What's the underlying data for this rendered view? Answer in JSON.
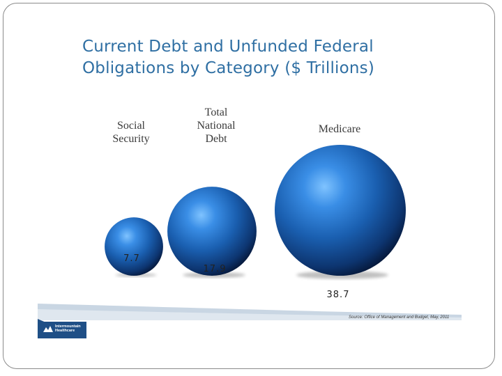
{
  "slide": {
    "title_lines": [
      "Current Debt and Unfunded Federal",
      "Obligations by Category ($ Trillions)"
    ]
  },
  "chart_data": {
    "type": "bubble",
    "title": "Current Debt and Unfunded Federal Obligations by Category ($ Trillions)",
    "categories": [
      "Social Security",
      "Total National Debt",
      "Medicare"
    ],
    "category_label_lines": [
      [
        "Social",
        "Security"
      ],
      [
        "Total",
        "National",
        "Debt"
      ],
      [
        "Medicare"
      ]
    ],
    "values": [
      7.7,
      17.9,
      38.7
    ],
    "value_labels": [
      "7.7",
      "17.9",
      "38.7"
    ],
    "unit": "$ Trillions",
    "colors": {
      "bubble": "#1a5fb0",
      "highlight": "#7fc3ff",
      "shadow": "#06183a"
    }
  },
  "footer": {
    "source": "Source: Office of Management and Budget, May, 2011",
    "logo_lines": [
      "Intermountain",
      "Healthcare"
    ],
    "colors": {
      "band_dark": "#1f4f86",
      "band_light": "#c9d6e3"
    }
  }
}
